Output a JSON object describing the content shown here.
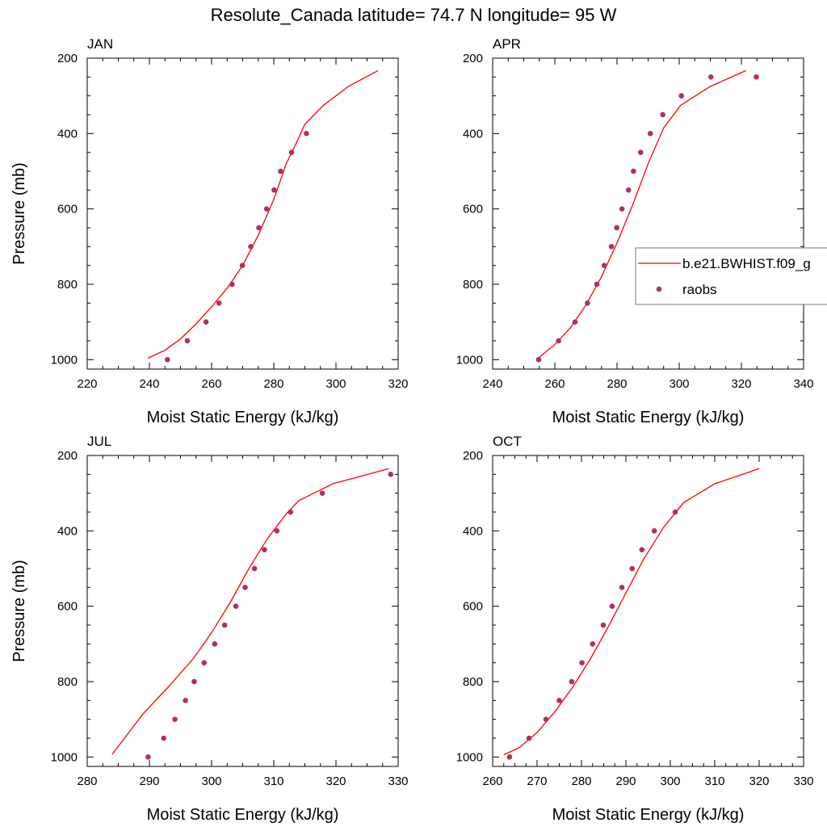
{
  "figure": {
    "title": "Resolute_Canada  latitude= 74.7 N longitude= 95 W"
  },
  "colors": {
    "model_line": "#ff0000",
    "obs_marker": "#b03060",
    "axes": "#000000"
  },
  "legend": {
    "location": "APR panel, right side",
    "entries": [
      {
        "label": "b.e21.BWHIST.f09_g",
        "symbol": "line",
        "color": "#ff0000"
      },
      {
        "label": "raobs",
        "symbol": "marker",
        "color": "#b03060"
      }
    ]
  },
  "chart_data": [
    {
      "type": "line",
      "panel_title": "JAN",
      "xlabel": "Moist Static Energy (kJ/kg)",
      "ylabel": "Pressure (mb)",
      "xlim": [
        220,
        320
      ],
      "xticks": [
        "220",
        "240",
        "260",
        "280",
        "300",
        "320"
      ],
      "ylim": [
        1025,
        200
      ],
      "yticks": [
        "200",
        "400",
        "600",
        "800",
        "1000"
      ],
      "series": [
        {
          "name": "b.e21.BWHIST.f09_g",
          "style": "line",
          "x": [
            239.5,
            245,
            250,
            255,
            260,
            265,
            270,
            275,
            280,
            284,
            287,
            290,
            296,
            304,
            313.5
          ],
          "y": [
            996,
            975,
            945,
            905,
            860,
            810,
            750,
            670,
            575,
            480,
            430,
            375,
            325,
            275,
            233
          ]
        },
        {
          "name": "raobs",
          "style": "marker",
          "x": [
            245.8,
            252.2,
            258.2,
            262.4,
            266.6,
            269.9,
            272.6,
            275.2,
            277.7,
            280.1,
            282.2,
            285.7,
            290.5
          ],
          "y": [
            1000,
            950,
            900,
            850,
            800,
            750,
            700,
            650,
            600,
            550,
            500,
            450,
            400
          ]
        }
      ]
    },
    {
      "type": "line",
      "panel_title": "APR",
      "xlabel": "Moist Static Energy (kJ/kg)",
      "ylabel": "",
      "xlim": [
        240,
        340
      ],
      "xticks": [
        "240",
        "260",
        "280",
        "300",
        "320",
        "340"
      ],
      "ylim": [
        1025,
        200
      ],
      "yticks": [
        "200",
        "400",
        "600",
        "800",
        "1000"
      ],
      "series": [
        {
          "name": "b.e21.BWHIST.f09_g",
          "style": "line",
          "x": [
            254.5,
            260,
            265,
            270,
            275,
            280,
            285,
            290,
            295,
            300.5,
            310,
            321.5
          ],
          "y": [
            997,
            960,
            915,
            855,
            780,
            690,
            590,
            480,
            385,
            325,
            275,
            233
          ]
        },
        {
          "name": "raobs",
          "style": "marker",
          "x": [
            254.8,
            261.2,
            266.5,
            270.5,
            273.5,
            275.9,
            278.2,
            279.9,
            281.6,
            283.7,
            285.3,
            287.6,
            290.7,
            294.7,
            300.7,
            310.2,
            324.8
          ],
          "y": [
            1000,
            950,
            900,
            850,
            800,
            750,
            700,
            650,
            600,
            550,
            500,
            450,
            400,
            350,
            300,
            250,
            250
          ]
        }
      ]
    },
    {
      "type": "line",
      "panel_title": "JUL",
      "xlabel": "Moist Static Energy (kJ/kg)",
      "ylabel": "Pressure (mb)",
      "xlim": [
        280,
        330
      ],
      "xticks": [
        "280",
        "290",
        "300",
        "310",
        "320",
        "330"
      ],
      "ylim": [
        1025,
        200
      ],
      "yticks": [
        "200",
        "400",
        "600",
        "800",
        "1000"
      ],
      "series": [
        {
          "name": "b.e21.BWHIST.f09_g",
          "style": "line",
          "x": [
            284,
            286,
            289,
            293,
            297,
            300,
            303,
            306,
            309,
            312,
            314,
            319.5,
            328.5
          ],
          "y": [
            993,
            950,
            885,
            815,
            740,
            670,
            590,
            500,
            420,
            355,
            320,
            275,
            235
          ]
        },
        {
          "name": "raobs",
          "style": "marker",
          "x": [
            289.8,
            292.3,
            294.1,
            295.8,
            297.2,
            298.8,
            300.5,
            302.1,
            303.9,
            305.4,
            306.9,
            308.5,
            310.5,
            312.7,
            317.8,
            328.8
          ],
          "y": [
            1000,
            950,
            900,
            850,
            800,
            750,
            700,
            650,
            600,
            550,
            500,
            450,
            400,
            350,
            300,
            250
          ]
        }
      ]
    },
    {
      "type": "line",
      "panel_title": "OCT",
      "xlabel": "Moist Static Energy (kJ/kg)",
      "ylabel": "",
      "xlim": [
        260,
        330
      ],
      "xticks": [
        "260",
        "270",
        "280",
        "290",
        "300",
        "310",
        "320",
        "330"
      ],
      "ylim": [
        1025,
        200
      ],
      "yticks": [
        "200",
        "400",
        "600",
        "800",
        "1000"
      ],
      "series": [
        {
          "name": "b.e21.BWHIST.f09_g",
          "style": "line",
          "x": [
            262.5,
            266,
            270,
            274,
            278,
            282,
            286,
            290,
            294,
            298.5,
            303,
            310,
            320
          ],
          "y": [
            994,
            975,
            935,
            880,
            815,
            740,
            655,
            565,
            475,
            390,
            325,
            275,
            235
          ]
        },
        {
          "name": "raobs",
          "style": "marker",
          "x": [
            263.8,
            268.2,
            272,
            275,
            277.8,
            280.1,
            282.5,
            284.9,
            286.9,
            289.1,
            291.4,
            293.6,
            296.4,
            301.1
          ],
          "y": [
            1000,
            950,
            900,
            850,
            800,
            750,
            700,
            650,
            600,
            550,
            500,
            450,
            400,
            350
          ]
        }
      ]
    }
  ]
}
